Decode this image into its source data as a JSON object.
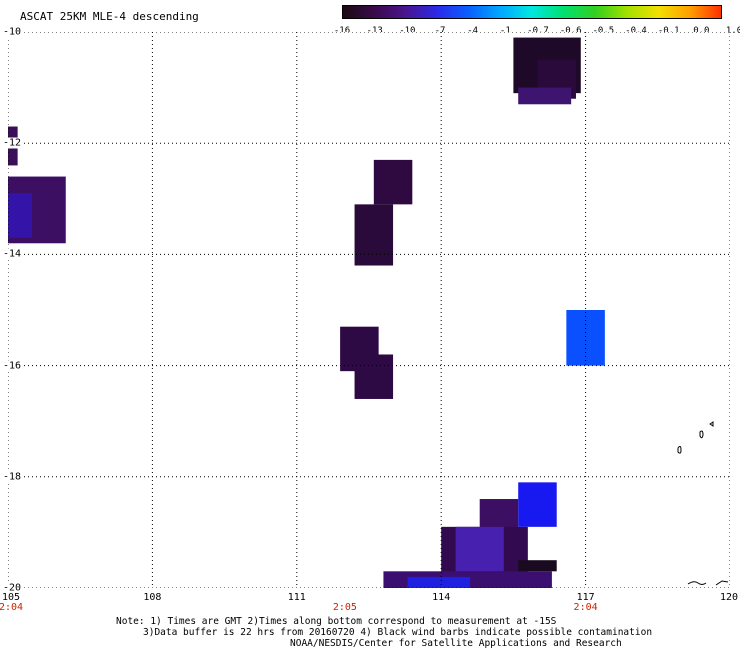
{
  "title": "ASCAT 25KM MLE-4 descending",
  "colorbar": {
    "labels": [
      "-16",
      "-13",
      "-10",
      "-7",
      "-4",
      "-1",
      "-0.7",
      "-0.6",
      "-0.5",
      "-0.4",
      "-0.1",
      "0.0",
      "1.0"
    ],
    "colors": [
      "#1a0a14",
      "#3a0a4a",
      "#4a1590",
      "#2a2ae8",
      "#0a60ff",
      "#00a8ff",
      "#00e8e0",
      "#00e070",
      "#30d020",
      "#a0e000",
      "#f0e000",
      "#ffa000",
      "#ff3000"
    ]
  },
  "axes": {
    "lat_labels": [
      "-10",
      "-12",
      "-14",
      "-16",
      "-18",
      "-20"
    ],
    "lon_labels": [
      "105",
      "108",
      "111",
      "114",
      "117",
      "120"
    ],
    "lon_range": [
      105,
      120
    ],
    "lat_range": [
      -20,
      -10
    ]
  },
  "time_labels": [
    {
      "lon": 105,
      "text": "2:04"
    },
    {
      "lon": 112,
      "text": "2:05"
    },
    {
      "lon": 117,
      "text": "2:04"
    }
  ],
  "cells": [
    {
      "lon": 115.5,
      "lat": -10.1,
      "w": 1.4,
      "h": 1.0,
      "color": "#1e0a28"
    },
    {
      "lon": 116.0,
      "lat": -10.5,
      "w": 0.8,
      "h": 0.7,
      "color": "#2a0a3a"
    },
    {
      "lon": 115.6,
      "lat": -11.0,
      "w": 1.1,
      "h": 0.3,
      "color": "#3d1470"
    },
    {
      "lon": 105.0,
      "lat": -11.7,
      "w": 0.2,
      "h": 0.7,
      "color": "#3a0f58"
    },
    {
      "lon": 105.0,
      "lat": -12.6,
      "w": 1.2,
      "h": 1.2,
      "color": "#3c0f62"
    },
    {
      "lon": 105.0,
      "lat": -12.9,
      "w": 0.5,
      "h": 0.8,
      "color": "#3414a8"
    },
    {
      "lon": 112.6,
      "lat": -12.3,
      "w": 0.8,
      "h": 0.8,
      "color": "#2e0a40"
    },
    {
      "lon": 112.2,
      "lat": -13.1,
      "w": 0.8,
      "h": 1.1,
      "color": "#2a0a3a"
    },
    {
      "lon": 111.9,
      "lat": -15.3,
      "w": 0.8,
      "h": 0.8,
      "color": "#2e0a44"
    },
    {
      "lon": 112.2,
      "lat": -15.8,
      "w": 0.8,
      "h": 0.8,
      "color": "#2e0a44"
    },
    {
      "lon": 116.6,
      "lat": -15.0,
      "w": 0.8,
      "h": 1.0,
      "color": "#0a50ff"
    },
    {
      "lon": 115.6,
      "lat": -18.1,
      "w": 0.8,
      "h": 0.8,
      "color": "#1818f0"
    },
    {
      "lon": 114.8,
      "lat": -18.4,
      "w": 0.8,
      "h": 0.8,
      "color": "#3c0f62"
    },
    {
      "lon": 114.0,
      "lat": -18.9,
      "w": 1.8,
      "h": 1.1,
      "color": "#320a50"
    },
    {
      "lon": 114.3,
      "lat": -18.9,
      "w": 1.0,
      "h": 0.8,
      "color": "#4820b0"
    },
    {
      "lon": 112.8,
      "lat": -19.7,
      "w": 3.5,
      "h": 0.3,
      "color": "#3a0f70"
    },
    {
      "lon": 113.3,
      "lat": -19.8,
      "w": 1.3,
      "h": 0.2,
      "color": "#2020e0"
    },
    {
      "lon": 115.6,
      "lat": -19.5,
      "w": 0.8,
      "h": 0.2,
      "color": "#1a0a20"
    }
  ],
  "notes": [
    "Note: 1) Times are GMT 2)Times along bottom correspond to measurement at -15S",
    "3)Data buffer is 22 hrs from 20160720 4) Black wind barbs indicate possible contamination",
    "NOAA/NESDIS/Center for Satellite Applications and Research"
  ]
}
